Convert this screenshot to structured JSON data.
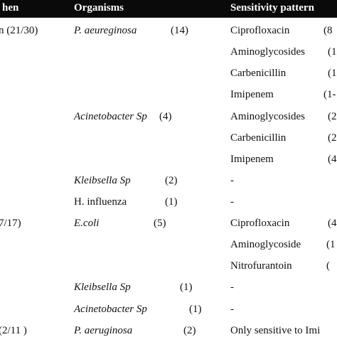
{
  "header": {
    "col_specimen": "hen",
    "col_organisms": "Organisms",
    "col_sensitivity": "Sensitivity pattern"
  },
  "rows": [
    {
      "specimen": "n (21/30)",
      "organism": "P. aeureginosa",
      "italic": true,
      "count": "(14)",
      "drug": "Ciprofloxacin",
      "drug_count": "(8"
    },
    {
      "specimen": "",
      "organism": "",
      "italic": true,
      "count": "",
      "drug": "Aminoglycosides",
      "drug_count": "(1"
    },
    {
      "specimen": "",
      "organism": "",
      "italic": true,
      "count": "",
      "drug": "Carbenicillin",
      "drug_count": "(1"
    },
    {
      "specimen": "",
      "organism": "",
      "italic": true,
      "count": "",
      "drug": "Imipenem",
      "drug_count": "(1-"
    },
    {
      "specimen": "",
      "organism": "Acinetobacter Sp",
      "italic": true,
      "count": "(4)",
      "drug": "Aminoglycosides",
      "drug_count": "(2"
    },
    {
      "specimen": "",
      "organism": "",
      "italic": true,
      "count": "",
      "drug": "Carbenicillin",
      "drug_count": "(2"
    },
    {
      "specimen": "",
      "organism": "",
      "italic": true,
      "count": "",
      "drug": "Imipenem",
      "drug_count": "(4"
    },
    {
      "specimen": "",
      "organism": "Kleibsella Sp",
      "italic": true,
      "count": "(2)",
      "drug": "-",
      "drug_count": ""
    },
    {
      "specimen": "",
      "organism": "H. influenza",
      "italic": false,
      "count": "(1)",
      "drug": "-",
      "drug_count": ""
    },
    {
      "specimen": "7/17)",
      "organism": "E.coli",
      "italic": true,
      "count": "(5)",
      "drug": "Ciprofloxacin",
      "drug_count": "(4"
    },
    {
      "specimen": "",
      "organism": "",
      "italic": true,
      "count": "",
      "drug": "Aminoglycoside",
      "drug_count": "(1"
    },
    {
      "specimen": "",
      "organism": "",
      "italic": true,
      "count": "",
      "drug": "Nitrofurantoin",
      "drug_count": "("
    },
    {
      "specimen": "",
      "organism": "Kleibsella Sp",
      "italic": true,
      "count": "(1)",
      "drug": "-",
      "drug_count": ""
    },
    {
      "specimen": "",
      "organism": "Acinetobacter Sp",
      "italic": true,
      "count": "(1)",
      "drug": "-",
      "drug_count": ""
    },
    {
      "specimen": "(2/11 )",
      "organism": "P. aeruginosa",
      "italic": true,
      "count": "(2)",
      "drug": "Only sensitive to Imi",
      "drug_count": ""
    }
  ]
}
